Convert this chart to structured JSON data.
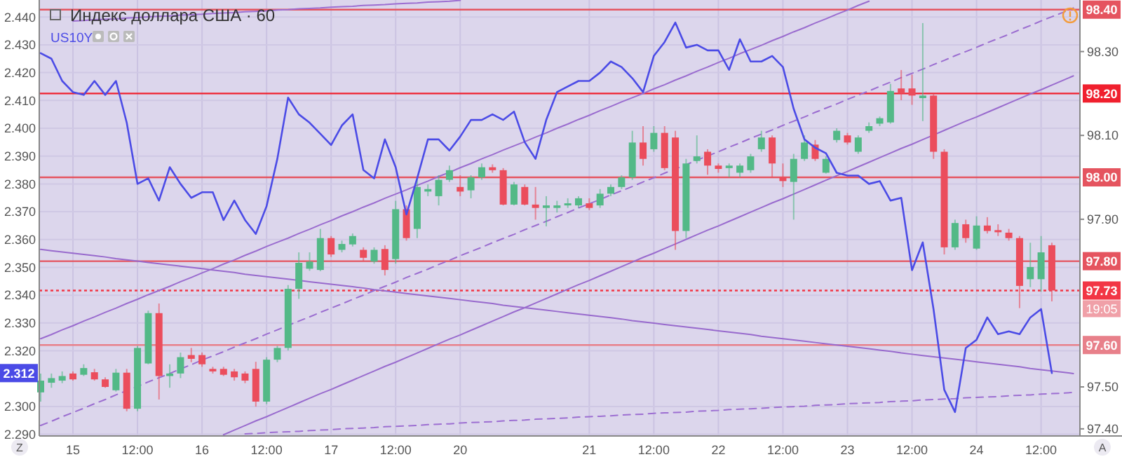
{
  "chart_data": {
    "type": "candlestick",
    "title": "Индекс доллара США · 60",
    "categories": [
      null,
      null,
      null,
      "15",
      null,
      null,
      null,
      null,
      null,
      "12:00",
      null,
      null,
      null,
      null,
      null,
      "16",
      null,
      null,
      null,
      null,
      null,
      "12:00",
      null,
      null,
      null,
      null,
      null,
      "17",
      null,
      null,
      null,
      null,
      null,
      "12:00",
      null,
      null,
      null,
      null,
      null,
      "20",
      null,
      null,
      null,
      null,
      null,
      null,
      null,
      null,
      null,
      null,
      null,
      "21",
      null,
      null,
      null,
      null,
      null,
      "12:00",
      null,
      null,
      null,
      null,
      null,
      "22",
      null,
      null,
      null,
      null,
      null,
      "12:00",
      null,
      null,
      null,
      null,
      null,
      "23",
      null,
      null,
      null,
      null,
      null,
      "12:00",
      null,
      null,
      null,
      null,
      null,
      "24",
      null,
      null,
      null,
      null,
      null,
      "12:00",
      null,
      null,
      null
    ],
    "y2lim": [
      2.2894,
      2.4461
    ],
    "y2ticks": [
      {
        "value": 2.44,
        "label": "2.440"
      },
      {
        "value": 2.43,
        "label": "2.430"
      },
      {
        "value": 2.42,
        "label": "2.420"
      },
      {
        "value": 2.41,
        "label": "2.410"
      },
      {
        "value": 2.4,
        "label": "2.400"
      },
      {
        "value": 2.39,
        "label": "2.390"
      },
      {
        "value": 2.38,
        "label": "2.380"
      },
      {
        "value": 2.37,
        "label": "2.370"
      },
      {
        "value": 2.36,
        "label": "2.360"
      },
      {
        "value": 2.35,
        "label": "2.350"
      },
      {
        "value": 2.34,
        "label": "2.340"
      },
      {
        "value": 2.33,
        "label": "2.330"
      },
      {
        "value": 2.32,
        "label": "2.320"
      },
      {
        "value": 2.3,
        "label": "2.300"
      },
      {
        "value": 2.29,
        "label": "2.290"
      }
    ],
    "ylim": [
      97.383,
      98.423
    ],
    "yticks": [
      {
        "value": 98.3,
        "label": "98.30"
      },
      {
        "value": 98.1,
        "label": "98.10"
      },
      {
        "value": 97.9,
        "label": "97.90"
      },
      {
        "value": 97.5,
        "label": "97.50"
      },
      {
        "value": 97.4,
        "label": "97.40"
      }
    ],
    "grid": true,
    "legend": "top left",
    "series": [
      {
        "type": "line",
        "color": "#9a6ccf",
        "values": [
          97.615,
          97.625,
          97.636,
          97.646,
          97.657,
          97.667,
          97.678,
          97.688,
          97.699,
          97.709,
          97.72,
          97.73,
          97.74,
          97.751,
          97.761,
          97.772,
          97.782,
          97.793,
          97.803,
          97.814,
          97.824,
          97.835,
          97.845,
          97.855,
          97.866,
          97.876,
          97.887,
          97.897,
          97.908,
          97.918,
          97.929,
          97.939,
          97.95,
          97.96,
          97.97,
          97.981,
          97.991,
          98.002,
          98.012,
          98.023,
          98.033,
          98.044,
          98.054,
          98.065,
          98.075,
          98.085,
          98.096,
          98.106,
          98.117,
          98.127,
          98.138,
          98.148,
          98.159,
          98.169,
          98.18,
          98.19,
          98.2,
          98.211,
          98.221,
          98.232,
          98.242,
          98.253,
          98.263,
          98.274,
          98.284,
          98.295,
          98.305,
          98.315,
          98.326,
          98.336,
          98.347,
          98.357,
          98.368,
          98.378,
          98.389,
          98.399,
          98.41,
          98.42,
          null,
          null,
          null,
          null,
          null,
          null,
          null,
          null,
          null,
          null,
          null,
          null,
          null,
          null,
          null,
          null,
          null,
          null,
          null
        ]
      },
      {
        "type": "line",
        "color": "#9b6dd0",
        "line_style": "dashed",
        "values": [
          97.408,
          97.418,
          97.429,
          97.439,
          97.449,
          97.46,
          97.47,
          97.481,
          97.491,
          97.501,
          97.512,
          97.522,
          97.532,
          97.543,
          97.553,
          97.564,
          97.574,
          97.584,
          97.595,
          97.605,
          97.615,
          97.626,
          97.636,
          97.647,
          97.657,
          97.667,
          97.678,
          97.688,
          97.698,
          97.709,
          97.719,
          97.73,
          97.74,
          97.75,
          97.761,
          97.771,
          97.781,
          97.792,
          97.802,
          97.813,
          97.823,
          97.833,
          97.844,
          97.854,
          97.864,
          97.875,
          97.885,
          97.895,
          97.906,
          97.916,
          97.927,
          97.937,
          97.947,
          97.958,
          97.968,
          97.978,
          97.989,
          97.999,
          98.01,
          98.02,
          98.03,
          98.041,
          98.051,
          98.061,
          98.072,
          98.082,
          98.093,
          98.103,
          98.113,
          98.124,
          98.134,
          98.144,
          98.155,
          98.165,
          98.175,
          98.186,
          98.196,
          98.206,
          98.217,
          98.227,
          98.238,
          98.248,
          98.258,
          98.269,
          98.279,
          98.29,
          98.3,
          98.31,
          98.321,
          98.331,
          98.341,
          98.352,
          98.362,
          98.373,
          98.383,
          98.393,
          98.404
        ]
      },
      {
        "type": "line",
        "color": "#996bce",
        "values": [
          null,
          null,
          null,
          null,
          null,
          null,
          null,
          null,
          null,
          null,
          null,
          null,
          null,
          null,
          null,
          null,
          null,
          97.386,
          97.397,
          97.408,
          97.419,
          97.429,
          97.44,
          97.451,
          97.462,
          97.473,
          97.484,
          97.494,
          97.505,
          97.516,
          97.527,
          97.538,
          97.549,
          97.559,
          97.57,
          97.581,
          97.592,
          97.603,
          97.614,
          97.624,
          97.635,
          97.646,
          97.657,
          97.668,
          97.679,
          97.689,
          97.7,
          97.711,
          97.722,
          97.733,
          97.744,
          97.754,
          97.765,
          97.776,
          97.787,
          97.798,
          97.809,
          97.819,
          97.83,
          97.841,
          97.852,
          97.863,
          97.874,
          97.884,
          97.895,
          97.906,
          97.917,
          97.928,
          97.939,
          97.949,
          97.96,
          97.971,
          97.982,
          97.993,
          98.004,
          98.014,
          98.025,
          98.036,
          98.047,
          98.058,
          98.069,
          98.079,
          98.09,
          98.101,
          98.112,
          98.123,
          98.134,
          98.144,
          98.155,
          98.166,
          98.177,
          98.188,
          98.199,
          98.209,
          98.22,
          98.231,
          98.242
        ]
      },
      {
        "type": "line",
        "color": "#9c6ed1",
        "values": [
          null,
          null,
          null,
          98.373,
          98.374,
          98.376,
          98.377,
          98.378,
          98.38,
          98.381,
          98.383,
          98.384,
          98.385,
          98.387,
          98.388,
          98.389,
          98.391,
          98.392,
          98.393,
          98.395,
          98.396,
          98.397,
          98.399,
          98.4,
          98.402,
          98.403,
          98.404,
          98.406,
          98.407,
          98.408,
          98.41,
          98.411,
          98.412,
          98.414,
          98.415,
          98.416,
          98.418,
          98.419,
          98.42,
          98.422,
          null,
          null,
          null,
          null,
          null,
          null,
          null,
          null,
          null,
          null,
          null,
          null,
          null,
          null,
          null,
          null,
          null,
          null,
          null,
          null,
          null,
          null,
          null,
          null,
          null,
          null,
          null,
          null,
          null,
          null,
          null,
          null,
          null,
          null,
          null,
          null,
          null,
          null,
          null,
          null,
          null,
          null,
          null,
          null,
          null,
          null,
          null,
          null,
          null,
          null,
          null,
          null,
          null,
          null,
          null,
          null,
          null
        ]
      },
      {
        "type": "line",
        "color": "#986acd",
        "values": [
          97.828,
          97.825,
          97.822,
          97.819,
          97.816,
          97.813,
          97.81,
          97.806,
          97.803,
          97.8,
          97.797,
          97.794,
          97.791,
          97.788,
          97.785,
          97.782,
          97.779,
          97.776,
          97.773,
          97.769,
          97.766,
          97.763,
          97.76,
          97.757,
          97.754,
          97.751,
          97.748,
          97.745,
          97.742,
          97.739,
          97.736,
          97.732,
          97.729,
          97.726,
          97.723,
          97.72,
          97.717,
          97.714,
          97.711,
          97.708,
          97.705,
          97.702,
          97.699,
          97.695,
          97.692,
          97.689,
          97.686,
          97.683,
          97.68,
          97.677,
          97.674,
          97.671,
          97.668,
          97.665,
          97.662,
          97.658,
          97.655,
          97.652,
          97.649,
          97.646,
          97.643,
          97.64,
          97.637,
          97.634,
          97.631,
          97.628,
          97.625,
          97.621,
          97.618,
          97.615,
          97.612,
          97.609,
          97.606,
          97.603,
          97.6,
          97.597,
          97.594,
          97.591,
          97.588,
          97.585,
          97.581,
          97.578,
          97.575,
          97.572,
          97.569,
          97.566,
          97.563,
          97.56,
          97.557,
          97.554,
          97.551,
          97.548,
          97.544,
          97.541,
          97.538,
          97.535,
          97.532
        ]
      },
      {
        "type": "line",
        "color": "#9d6fd2",
        "line_style": "dashed",
        "values": [
          null,
          null,
          null,
          null,
          null,
          null,
          null,
          null,
          null,
          null,
          null,
          null,
          null,
          null,
          null,
          null,
          null,
          null,
          null,
          97.388,
          97.389,
          97.391,
          97.392,
          97.393,
          97.394,
          97.396,
          97.397,
          97.398,
          97.4,
          97.401,
          97.402,
          97.403,
          97.405,
          97.406,
          97.407,
          97.408,
          97.41,
          97.411,
          97.412,
          97.414,
          97.415,
          97.416,
          97.417,
          97.419,
          97.42,
          97.421,
          97.423,
          97.424,
          97.425,
          97.426,
          97.428,
          97.429,
          97.43,
          97.431,
          97.433,
          97.434,
          97.435,
          97.437,
          97.438,
          97.439,
          97.44,
          97.442,
          97.443,
          97.444,
          97.446,
          97.447,
          97.448,
          97.449,
          97.451,
          97.452,
          97.453,
          97.454,
          97.456,
          97.457,
          97.458,
          97.46,
          97.461,
          97.462,
          97.463,
          97.465,
          97.466,
          97.467,
          97.469,
          97.47,
          97.471,
          97.472,
          97.474,
          97.475,
          97.476,
          97.477,
          97.479,
          97.48,
          97.481,
          97.483,
          97.484,
          97.485,
          97.487
        ]
      },
      {
        "ohlc": [
          [
            97.487,
            97.532,
            97.465,
            97.515
          ],
          [
            97.51,
            97.532,
            97.498,
            97.521
          ],
          [
            97.515,
            97.537,
            97.509,
            97.526
          ],
          [
            97.532,
            97.537,
            97.515,
            97.518
          ],
          [
            97.529,
            97.554,
            97.526,
            97.545
          ],
          [
            97.535,
            97.543,
            97.515,
            97.518
          ],
          [
            97.518,
            97.523,
            97.498,
            97.5
          ],
          [
            97.492,
            97.543,
            97.489,
            97.534
          ],
          [
            97.534,
            97.543,
            97.442,
            97.448
          ],
          [
            97.448,
            97.598,
            97.442,
            97.593
          ],
          [
            97.556,
            97.682,
            97.554,
            97.676
          ],
          [
            97.676,
            97.699,
            97.47,
            97.526
          ],
          [
            97.526,
            97.554,
            97.498,
            97.532
          ],
          [
            97.532,
            97.582,
            97.521,
            97.571
          ],
          [
            97.576,
            97.593,
            97.559,
            97.567
          ],
          [
            97.576,
            97.582,
            97.548,
            97.554
          ],
          [
            97.543,
            97.548,
            97.532,
            97.537
          ],
          [
            97.543,
            97.548,
            97.526,
            97.529
          ],
          [
            97.537,
            97.543,
            97.515,
            97.523
          ],
          [
            97.532,
            97.537,
            97.509,
            97.515
          ],
          [
            97.543,
            97.56,
            97.453,
            97.465
          ],
          [
            97.465,
            97.571,
            97.459,
            97.565
          ],
          [
            97.565,
            97.598,
            97.559,
            97.593
          ],
          [
            97.593,
            97.743,
            97.587,
            97.734
          ],
          [
            97.734,
            97.821,
            97.71,
            97.796
          ],
          [
            97.782,
            97.821,
            97.777,
            97.799
          ],
          [
            97.779,
            97.877,
            97.776,
            97.855
          ],
          [
            97.855,
            97.86,
            97.81,
            97.816
          ],
          [
            97.827,
            97.849,
            97.821,
            97.841
          ],
          [
            97.84,
            97.866,
            97.835,
            97.86
          ],
          [
            97.827,
            97.833,
            97.801,
            97.808
          ],
          [
            97.799,
            97.833,
            97.794,
            97.827
          ],
          [
            97.829,
            97.838,
            97.766,
            97.779
          ],
          [
            97.805,
            97.944,
            97.794,
            97.924
          ],
          [
            97.924,
            97.933,
            97.849,
            97.855
          ],
          [
            97.877,
            97.999,
            97.855,
            97.977
          ],
          [
            97.966,
            97.983,
            97.955,
            97.972
          ],
          [
            97.955,
            98.005,
            97.933,
            97.994
          ],
          [
            97.994,
            98.028,
            97.989,
            98.017
          ],
          [
            97.977,
            98.005,
            97.955,
            97.966
          ],
          [
            97.969,
            98.005,
            97.95,
            98.0
          ],
          [
            98.0,
            98.033,
            97.994,
            98.024
          ],
          [
            98.024,
            98.031,
            98.011,
            98.017
          ],
          [
            98.017,
            98.022,
            97.933,
            97.935
          ],
          [
            97.935,
            97.989,
            97.933,
            97.983
          ],
          [
            97.977,
            97.983,
            97.933,
            97.935
          ],
          [
            97.935,
            97.977,
            97.899,
            97.927
          ],
          [
            97.927,
            97.955,
            97.883,
            97.933
          ],
          [
            97.927,
            97.944,
            97.916,
            97.933
          ],
          [
            97.933,
            97.95,
            97.927,
            97.938
          ],
          [
            97.933,
            97.955,
            97.927,
            97.95
          ],
          [
            97.938,
            97.95,
            97.922,
            97.927
          ],
          [
            97.933,
            97.972,
            97.927,
            97.961
          ],
          [
            97.961,
            97.983,
            97.955,
            97.977
          ],
          [
            97.977,
            98.005,
            97.972,
            98.0
          ],
          [
            98.0,
            98.111,
            97.994,
            98.083
          ],
          [
            98.083,
            98.122,
            98.028,
            98.044
          ],
          [
            98.067,
            98.122,
            98.061,
            98.106
          ],
          [
            98.106,
            98.122,
            98.017,
            98.022
          ],
          [
            98.095,
            98.111,
            97.827,
            97.872
          ],
          [
            97.872,
            98.044,
            97.855,
            98.033
          ],
          [
            98.039,
            98.1,
            98.033,
            98.05
          ],
          [
            98.061,
            98.067,
            98.006,
            98.028
          ],
          [
            98.028,
            98.033,
            98.011,
            98.02
          ],
          [
            98.022,
            98.033,
            98.0,
            98.028
          ],
          [
            98.011,
            98.033,
            98.0,
            98.028
          ],
          [
            98.017,
            98.056,
            98.011,
            98.05
          ],
          [
            98.067,
            98.111,
            98.061,
            98.095
          ],
          [
            98.095,
            98.1,
            97.999,
            98.033
          ],
          [
            98.0,
            98.033,
            97.977,
            97.991
          ],
          [
            97.989,
            98.056,
            97.899,
            98.044
          ],
          [
            98.044,
            98.1,
            98.039,
            98.083
          ],
          [
            98.078,
            98.089,
            98.039,
            98.044
          ],
          [
            98.011,
            98.05,
            98.009,
            98.044
          ],
          [
            98.089,
            98.117,
            98.083,
            98.111
          ],
          [
            98.1,
            98.106,
            98.078,
            98.083
          ],
          [
            98.061,
            98.1,
            98.056,
            98.095
          ],
          [
            98.111,
            98.131,
            98.106,
            98.122
          ],
          [
            98.128,
            98.145,
            98.122,
            98.141
          ],
          [
            98.131,
            98.223,
            98.128,
            98.206
          ],
          [
            98.212,
            98.256,
            98.184,
            98.2
          ],
          [
            98.212,
            98.245,
            98.173,
            98.195
          ],
          [
            98.189,
            98.368,
            98.134,
            98.195
          ],
          [
            98.195,
            98.2,
            98.044,
            98.061
          ],
          [
            98.061,
            98.067,
            97.816,
            97.833
          ],
          [
            97.833,
            97.899,
            97.827,
            97.891
          ],
          [
            97.888,
            97.899,
            97.844,
            97.855
          ],
          [
            97.83,
            97.907,
            97.827,
            97.885
          ],
          [
            97.885,
            97.905,
            97.866,
            97.872
          ],
          [
            97.874,
            97.888,
            97.86,
            97.869
          ],
          [
            97.868,
            97.877,
            97.849,
            97.855
          ],
          [
            97.855,
            97.86,
            97.688,
            97.741
          ],
          [
            97.757,
            97.844,
            97.738,
            97.786
          ],
          [
            97.757,
            97.86,
            97.727,
            97.821
          ],
          [
            97.838,
            97.844,
            97.704,
            97.73
          ],
          null,
          null
        ],
        "colors": [
          "#53b987",
          "#53b987",
          "#53b987",
          "#eb4d5c",
          "#53b987",
          "#eb4d5c",
          "#eb4d5c",
          "#53b987",
          "#eb4d5c",
          "#53b987",
          "#53b987",
          "#eb4d5c",
          "#53b987",
          "#53b987",
          "#eb4d5c",
          "#eb4d5c",
          "#eb4d5c",
          "#eb4d5c",
          "#eb4d5c",
          "#eb4d5c",
          "#eb4d5c",
          "#53b987",
          "#53b987",
          "#53b987",
          "#53b987",
          "#53b987",
          "#53b987",
          "#eb4d5c",
          "#53b987",
          "#53b987",
          "#eb4d5c",
          "#53b987",
          "#eb4d5c",
          "#53b987",
          "#eb4d5c",
          "#53b987",
          "#53b987",
          "#53b987",
          "#53b987",
          "#eb4d5c",
          "#53b987",
          "#53b987",
          "#eb4d5c",
          "#eb4d5c",
          "#53b987",
          "#eb4d5c",
          "#eb4d5c",
          "#53b987",
          "#53b987",
          "#53b987",
          "#53b987",
          "#eb4d5c",
          "#53b987",
          "#53b987",
          "#53b987",
          "#53b987",
          "#eb4d5c",
          "#53b987",
          "#eb4d5c",
          "#eb4d5c",
          "#53b987",
          "#53b987",
          "#eb4d5c",
          "#eb4d5c",
          "#53b987",
          "#53b987",
          "#53b987",
          "#53b987",
          "#eb4d5c",
          "#eb4d5c",
          "#53b987",
          "#53b987",
          "#eb4d5c",
          "#53b987",
          "#53b987",
          "#eb4d5c",
          "#53b987",
          "#53b987",
          "#53b987",
          "#53b987",
          "#eb4d5c",
          "#eb4d5c",
          "#53b987",
          "#eb4d5c",
          "#eb4d5c",
          "#53b987",
          "#eb4d5c",
          "#53b987",
          "#eb4d5c",
          "#eb4d5c",
          "#eb4d5c",
          "#eb4d5c",
          "#53b987",
          "#53b987",
          "#eb4d5c",
          null,
          null
        ]
      },
      {
        "type": "line",
        "name": "US10Y",
        "axis": "y2",
        "color": "#4b4be6",
        "values": [
          2.427,
          2.425,
          2.417,
          2.413,
          2.412,
          2.417,
          2.412,
          2.417,
          2.402,
          2.38,
          2.382,
          2.374,
          2.386,
          2.38,
          2.375,
          2.377,
          2.377,
          2.367,
          2.374,
          2.367,
          2.362,
          2.372,
          2.389,
          2.411,
          2.405,
          2.402,
          2.398,
          2.394,
          2.401,
          2.405,
          2.385,
          2.382,
          2.396,
          2.386,
          2.369,
          2.382,
          2.396,
          2.396,
          2.392,
          2.397,
          2.403,
          2.403,
          2.405,
          2.403,
          2.406,
          2.395,
          2.389,
          2.403,
          2.413,
          2.415,
          2.417,
          2.417,
          2.42,
          2.424,
          2.422,
          2.418,
          2.413,
          2.426,
          2.431,
          2.438,
          2.429,
          2.43,
          2.428,
          2.428,
          2.421,
          2.432,
          2.424,
          2.424,
          2.426,
          2.422,
          2.407,
          2.396,
          2.393,
          2.391,
          2.384,
          2.383,
          2.383,
          2.38,
          2.381,
          2.374,
          2.375,
          2.349,
          2.359,
          2.335,
          2.306,
          2.298,
          2.321,
          2.324,
          2.332,
          2.326,
          2.327,
          2.326,
          2.332,
          2.335,
          2.312,
          null,
          null
        ]
      }
    ],
    "ref_lines": [
      {
        "axis": "y",
        "value": 98.4,
        "label": "98.40",
        "color": "#e5545f"
      },
      {
        "axis": "y",
        "value": 98.2,
        "label": "98.20",
        "color": "#f0202e"
      },
      {
        "axis": "y",
        "value": 98.0,
        "label": "98.00",
        "color": "#e5545f"
      },
      {
        "axis": "y",
        "value": 97.8,
        "label": "97.80",
        "color": "#e5545f"
      },
      {
        "axis": "y",
        "value": 97.6,
        "label": "97.60",
        "color": "#e8808a"
      },
      {
        "axis": "y",
        "value": 97.73,
        "label": "97.73",
        "color": "#f23645",
        "line_style": "dotted"
      }
    ],
    "annotations": [
      "2.312",
      "19:05",
      "Z",
      "A"
    ]
  }
}
